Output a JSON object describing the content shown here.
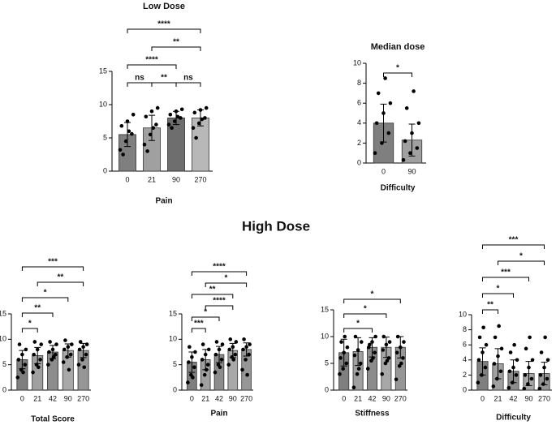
{
  "heading": "High Dose",
  "chart_data": [
    {
      "type": "bar",
      "title": "Low Dose",
      "x_label": "Pain",
      "categories": [
        "0",
        "21",
        "90",
        "270"
      ],
      "values": [
        5.5,
        6.5,
        8,
        8
      ],
      "errors": [
        1.8,
        1.9,
        1,
        1.2
      ],
      "colors": [
        "#7f7f7f",
        "#a0a0a0",
        "#6e6e6e",
        "#b8b8b8"
      ],
      "ylim": [
        0,
        15
      ],
      "yticks": [
        0,
        5,
        10,
        15
      ],
      "points": [
        [
          3.2,
          4.5,
          5.6,
          6.8,
          7.5,
          8.5,
          2.5,
          6
        ],
        [
          4,
          5.5,
          7,
          8.2,
          9,
          9.5,
          3,
          6.5
        ],
        [
          7,
          7.5,
          8,
          8.5,
          9,
          9.3,
          6.5,
          8.2
        ],
        [
          6.5,
          7.2,
          8,
          8.8,
          9.2,
          9.5,
          5,
          7.8
        ]
      ],
      "brackets": [
        {
          "from": 0,
          "to": 1,
          "label": "ns"
        },
        {
          "from": 1,
          "to": 2,
          "label": "**"
        },
        {
          "from": 2,
          "to": 3,
          "label": "ns"
        },
        {
          "from": 0,
          "to": 2,
          "label": "****"
        },
        {
          "from": 1,
          "to": 3,
          "label": "**"
        },
        {
          "from": 0,
          "to": 3,
          "label": "****"
        }
      ]
    },
    {
      "type": "bar",
      "title": "Median dose",
      "x_label": "Difficulty",
      "categories": [
        "0",
        "90"
      ],
      "values": [
        4,
        2.3
      ],
      "errors": [
        1.9,
        1.6
      ],
      "colors": [
        "#7f7f7f",
        "#a0a0a0"
      ],
      "ylim": [
        0,
        10
      ],
      "yticks": [
        0,
        2,
        4,
        6,
        8,
        10
      ],
      "points": [
        [
          1,
          2,
          3,
          4,
          5,
          6,
          7,
          8.5
        ],
        [
          0.3,
          1,
          1.5,
          2.2,
          3,
          4,
          5.5,
          7.2
        ]
      ],
      "brackets": [
        {
          "from": 0,
          "to": 1,
          "label": "*"
        }
      ]
    },
    {
      "type": "bar",
      "x_label": "Total Score",
      "categories": [
        "0",
        "21",
        "42",
        "90",
        "270"
      ],
      "values": [
        6,
        6.8,
        7.5,
        7.8,
        7.8
      ],
      "errors": [
        1.8,
        1.6,
        1.3,
        1.3,
        1.4
      ],
      "colors": [
        "#7f7f7f",
        "#a0a0a0",
        "#8c8c8c",
        "#a8a8a8",
        "#969696"
      ],
      "ylim": [
        0,
        15
      ],
      "yticks": [
        0,
        5,
        10,
        15
      ],
      "points": [
        [
          2.5,
          4,
          5,
          6,
          7,
          8,
          9,
          3.5
        ],
        [
          3.5,
          5,
          6,
          7,
          8,
          9,
          9.5,
          4.5
        ],
        [
          5,
          6,
          7,
          7.5,
          8,
          9,
          9.5,
          6.5
        ],
        [
          5.5,
          6.5,
          7,
          8,
          8.5,
          9,
          9.8,
          4
        ],
        [
          5,
          6,
          7,
          8,
          8.5,
          9,
          9.5,
          4.5
        ]
      ],
      "brackets": [
        {
          "from": 0,
          "to": 1,
          "label": "*"
        },
        {
          "from": 0,
          "to": 2,
          "label": "**"
        },
        {
          "from": 0,
          "to": 3,
          "label": "*"
        },
        {
          "from": 1,
          "to": 4,
          "label": "**"
        },
        {
          "from": 0,
          "to": 4,
          "label": "***"
        }
      ]
    },
    {
      "type": "bar",
      "x_label": "Pain",
      "categories": [
        "0",
        "21",
        "42",
        "90",
        "270"
      ],
      "values": [
        5.5,
        6,
        7,
        7.8,
        8
      ],
      "errors": [
        2,
        2,
        1.6,
        1.4,
        1.3
      ],
      "colors": [
        "#7f7f7f",
        "#a0a0a0",
        "#8c8c8c",
        "#a8a8a8",
        "#969696"
      ],
      "ylim": [
        0,
        15
      ],
      "yticks": [
        0,
        5,
        10,
        15
      ],
      "points": [
        [
          1.5,
          3,
          4.5,
          5.5,
          6.5,
          7.5,
          8.5,
          2.5
        ],
        [
          1,
          3,
          5,
          6,
          7,
          8,
          9,
          4
        ],
        [
          3.5,
          5,
          6,
          7,
          8,
          9,
          9.5,
          4.5
        ],
        [
          5,
          6.5,
          7,
          8,
          8.5,
          9.5,
          10,
          6
        ],
        [
          4,
          6,
          7,
          8,
          8.5,
          9,
          10,
          3
        ]
      ],
      "brackets": [
        {
          "from": 0,
          "to": 1,
          "label": "***"
        },
        {
          "from": 0,
          "to": 2,
          "label": "*"
        },
        {
          "from": 1,
          "to": 3,
          "label": "****"
        },
        {
          "from": 0,
          "to": 3,
          "label": "**"
        },
        {
          "from": 1,
          "to": 4,
          "label": "*"
        },
        {
          "from": 0,
          "to": 4,
          "label": "****"
        }
      ]
    },
    {
      "type": "bar",
      "x_label": "Stiffness",
      "categories": [
        "0",
        "21",
        "42",
        "90",
        "270"
      ],
      "values": [
        7,
        7.2,
        8,
        8,
        8
      ],
      "errors": [
        2.5,
        2.6,
        1.8,
        1.9,
        2
      ],
      "colors": [
        "#7f7f7f",
        "#a0a0a0",
        "#8c8c8c",
        "#a8a8a8",
        "#969696"
      ],
      "ylim": [
        0,
        15
      ],
      "yticks": [
        0,
        5,
        10,
        15
      ],
      "points": [
        [
          3,
          4,
          5,
          6,
          7,
          8,
          9,
          10
        ],
        [
          0.5,
          3,
          5,
          6.5,
          7.5,
          9,
          10,
          4
        ],
        [
          4,
          5.5,
          7,
          8,
          9,
          10,
          8.5,
          6
        ],
        [
          3,
          5,
          6,
          7.5,
          8.5,
          9,
          10,
          5.5
        ],
        [
          2,
          4.5,
          6,
          7,
          8,
          9,
          10,
          5
        ]
      ],
      "brackets": [
        {
          "from": 0,
          "to": 2,
          "label": "*"
        },
        {
          "from": 0,
          "to": 3,
          "label": "*"
        },
        {
          "from": 0,
          "to": 4,
          "label": "*"
        }
      ]
    },
    {
      "type": "bar",
      "x_label": "Difficulty",
      "categories": [
        "0",
        "21",
        "42",
        "90",
        "270"
      ],
      "values": [
        3.8,
        3.5,
        2.5,
        2.2,
        2.2
      ],
      "errors": [
        1.8,
        2,
        1.5,
        1.6,
        1.5
      ],
      "colors": [
        "#7f7f7f",
        "#a0a0a0",
        "#8c8c8c",
        "#a8a8a8",
        "#969696"
      ],
      "ylim": [
        0,
        10
      ],
      "yticks": [
        0,
        2,
        4,
        6,
        8,
        10
      ],
      "points": [
        [
          1,
          2,
          3,
          4,
          5,
          6,
          7,
          8.3
        ],
        [
          0.5,
          1.5,
          2.5,
          3.5,
          4.5,
          5.5,
          7,
          8.5
        ],
        [
          0.3,
          1,
          2,
          2.5,
          3,
          4,
          5,
          6
        ],
        [
          0.2,
          0.8,
          1.5,
          2,
          3,
          4,
          5.5,
          7
        ],
        [
          0.2,
          0.8,
          1.5,
          2,
          3,
          4,
          5,
          7
        ]
      ],
      "brackets": [
        {
          "from": 0,
          "to": 1,
          "label": "**"
        },
        {
          "from": 0,
          "to": 2,
          "label": "*"
        },
        {
          "from": 0,
          "to": 3,
          "label": "***"
        },
        {
          "from": 1,
          "to": 4,
          "label": "*"
        },
        {
          "from": 0,
          "to": 4,
          "label": "***"
        }
      ]
    }
  ]
}
